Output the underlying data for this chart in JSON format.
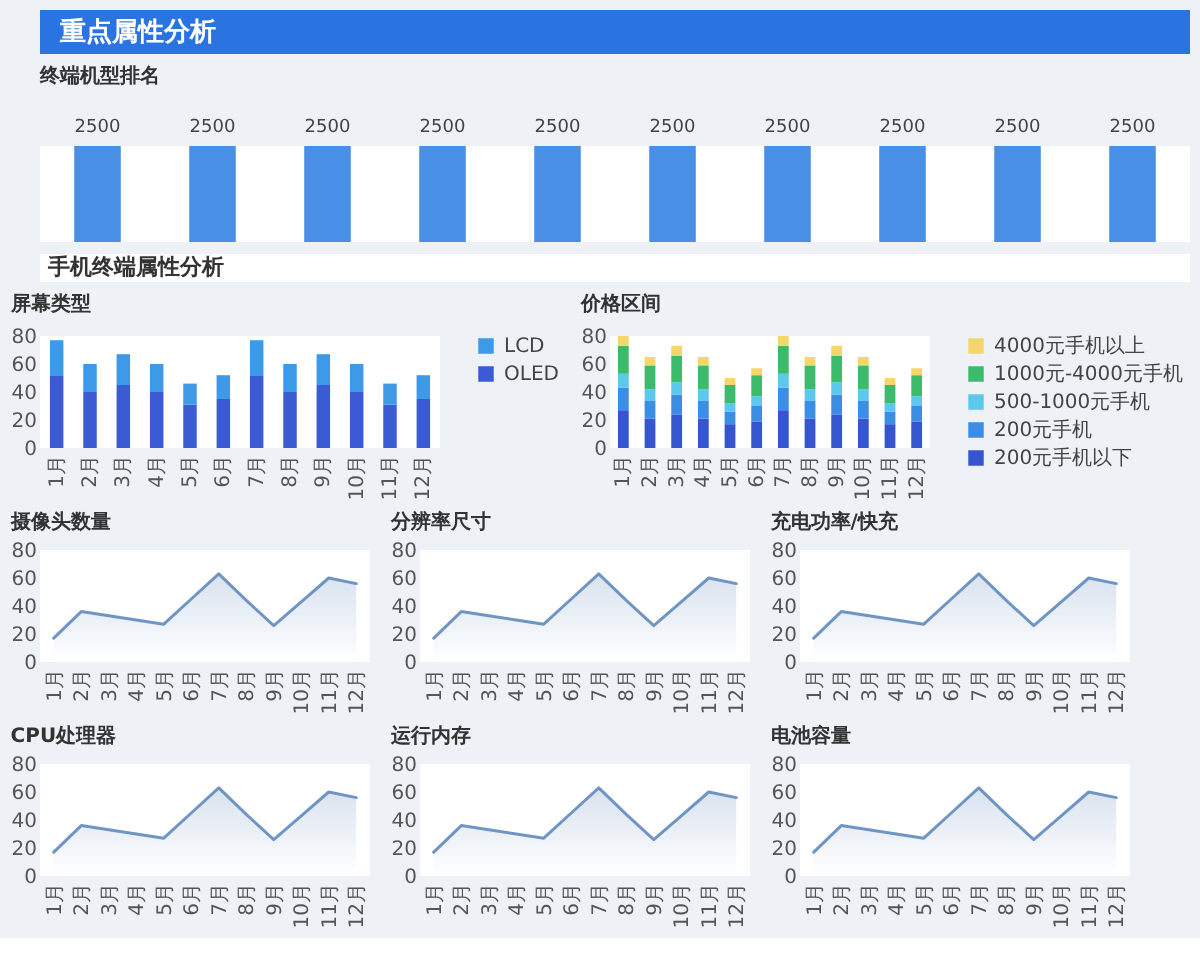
{
  "chart_data": [
    {
      "type": "other",
      "title": "重点属性分析"
    },
    {
      "type": "bar",
      "title": "终端机型排名",
      "categories": [
        null,
        null,
        null,
        null,
        null,
        null,
        null,
        null,
        null,
        null
      ],
      "values": [
        2500,
        2500,
        2500,
        2500,
        2500,
        2500,
        2500,
        2500,
        2500,
        2500
      ],
      "data_labels": true,
      "color": "#4a8fe6"
    },
    {
      "type": "other",
      "title": "手机终端属性分析"
    },
    {
      "type": "bar",
      "title": "屏幕类型",
      "categories": [
        "1月",
        "2月",
        "3月",
        "4月",
        "5月",
        "6月",
        "7月",
        "8月",
        "9月",
        "10月",
        "11月",
        "12月"
      ],
      "stacked": true,
      "series": [
        {
          "name": "OLED",
          "color": "#3b5bd5",
          "values": [
            52,
            40,
            45,
            40,
            31,
            35,
            52,
            40,
            45,
            40,
            31,
            35
          ]
        },
        {
          "name": "LCD",
          "color": "#3c9ae8",
          "values": [
            25,
            20,
            22,
            20,
            15,
            17,
            25,
            20,
            22,
            20,
            15,
            17
          ]
        }
      ],
      "ylim": [
        0,
        80
      ],
      "yticks": [
        0,
        20,
        40,
        60,
        80
      ],
      "legend": "right"
    },
    {
      "type": "bar",
      "title": "价格区间",
      "categories": [
        "1月",
        "2月",
        "3月",
        "4月",
        "5月",
        "6月",
        "7月",
        "8月",
        "9月",
        "10月",
        "11月",
        "12月"
      ],
      "stacked": true,
      "series": [
        {
          "name": "200元手机以下",
          "color": "#3556d0",
          "values": [
            27,
            21,
            24,
            21,
            17,
            19,
            27,
            21,
            24,
            21,
            17,
            19
          ]
        },
        {
          "name": "200元手机",
          "color": "#3b8de6",
          "values": [
            16,
            13,
            14,
            13,
            9,
            11,
            16,
            13,
            14,
            13,
            9,
            11
          ]
        },
        {
          "name": "500-1000元手机",
          "color": "#5cc8ee",
          "values": [
            10,
            8,
            9,
            8,
            6,
            7,
            10,
            8,
            9,
            8,
            6,
            7
          ]
        },
        {
          "name": "1000元-4000元手机",
          "color": "#3dbb6c",
          "values": [
            20,
            17,
            19,
            17,
            13,
            15,
            20,
            17,
            19,
            17,
            13,
            15
          ]
        },
        {
          "name": "4000元手机以上",
          "color": "#f5d66a",
          "values": [
            7,
            6,
            7,
            6,
            5,
            5,
            7,
            6,
            7,
            6,
            5,
            5
          ]
        }
      ],
      "ylim": [
        0,
        80
      ],
      "yticks": [
        0,
        20,
        40,
        60,
        80
      ],
      "legend": "right"
    },
    {
      "type": "area",
      "title": "摄像头数量",
      "categories": [
        "1月",
        "2月",
        "3月",
        "4月",
        "5月",
        "6月",
        "7月",
        "8月",
        "9月",
        "10月",
        "11月",
        "12月"
      ],
      "values": [
        17,
        36,
        33,
        30,
        27,
        45,
        63,
        44,
        26,
        43,
        60,
        56
      ],
      "color": "#6f95c4",
      "ylim": [
        0,
        80
      ],
      "yticks": [
        0,
        20,
        40,
        60,
        80
      ]
    },
    {
      "type": "area",
      "title": "分辨率尺寸",
      "categories": [
        "1月",
        "2月",
        "3月",
        "4月",
        "5月",
        "6月",
        "7月",
        "8月",
        "9月",
        "10月",
        "11月",
        "12月"
      ],
      "values": [
        17,
        36,
        33,
        30,
        27,
        45,
        63,
        44,
        26,
        43,
        60,
        56
      ],
      "color": "#6f95c4",
      "ylim": [
        0,
        80
      ],
      "yticks": [
        0,
        20,
        40,
        60,
        80
      ]
    },
    {
      "type": "area",
      "title": "充电功率/快充",
      "categories": [
        "1月",
        "2月",
        "3月",
        "4月",
        "5月",
        "6月",
        "7月",
        "8月",
        "9月",
        "10月",
        "11月",
        "12月"
      ],
      "values": [
        17,
        36,
        33,
        30,
        27,
        45,
        63,
        44,
        26,
        43,
        60,
        56
      ],
      "color": "#6f95c4",
      "ylim": [
        0,
        80
      ],
      "yticks": [
        0,
        20,
        40,
        60,
        80
      ]
    },
    {
      "type": "area",
      "title": "CPU处理器",
      "categories": [
        "1月",
        "2月",
        "3月",
        "4月",
        "5月",
        "6月",
        "7月",
        "8月",
        "9月",
        "10月",
        "11月",
        "12月"
      ],
      "values": [
        17,
        36,
        33,
        30,
        27,
        45,
        63,
        44,
        26,
        43,
        60,
        56
      ],
      "color": "#6f95c4",
      "ylim": [
        0,
        80
      ],
      "yticks": [
        0,
        20,
        40,
        60,
        80
      ]
    },
    {
      "type": "area",
      "title": "运行内存",
      "categories": [
        "1月",
        "2月",
        "3月",
        "4月",
        "5月",
        "6月",
        "7月",
        "8月",
        "9月",
        "10月",
        "11月",
        "12月"
      ],
      "values": [
        17,
        36,
        33,
        30,
        27,
        45,
        63,
        44,
        26,
        43,
        60,
        56
      ],
      "color": "#6f95c4",
      "ylim": [
        0,
        80
      ],
      "yticks": [
        0,
        20,
        40,
        60,
        80
      ]
    },
    {
      "type": "area",
      "title": "电池容量",
      "categories": [
        "1月",
        "2月",
        "3月",
        "4月",
        "5月",
        "6月",
        "7月",
        "8月",
        "9月",
        "10月",
        "11月",
        "12月"
      ],
      "values": [
        17,
        36,
        33,
        30,
        27,
        45,
        63,
        44,
        26,
        43,
        60,
        56
      ],
      "color": "#6f95c4",
      "ylim": [
        0,
        80
      ],
      "yticks": [
        0,
        20,
        40,
        60,
        80
      ]
    }
  ]
}
